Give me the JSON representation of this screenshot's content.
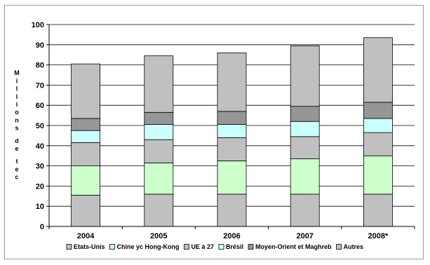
{
  "chart_data": {
    "type": "bar",
    "stacked": true,
    "title": "",
    "xlabel": "",
    "ylabel": "Millions de tec",
    "ylim": [
      0,
      100
    ],
    "yticks": [
      0,
      10,
      20,
      30,
      40,
      50,
      60,
      70,
      80,
      90,
      100
    ],
    "grid": true,
    "legend_position": "bottom",
    "categories": [
      "2004",
      "2005",
      "2006",
      "2007",
      "2008*"
    ],
    "series": [
      {
        "name": "Etats-Unis",
        "color": "#c0c0c0",
        "values": [
          15.5,
          16,
          16,
          16,
          16
        ]
      },
      {
        "name": "Chine yc Hong-Kong",
        "color": "#ccffcc",
        "values": [
          14.5,
          15.5,
          16.5,
          17.5,
          19
        ]
      },
      {
        "name": "UE à 27",
        "color": "#c0c0c0",
        "values": [
          11.5,
          11.5,
          11.5,
          11,
          11.5
        ]
      },
      {
        "name": "Brésil",
        "color": "#ccffff",
        "values": [
          6,
          7.5,
          6.5,
          7.5,
          7
        ]
      },
      {
        "name": "Moyen-Orient et Maghreb",
        "color": "#969696",
        "values": [
          6,
          6,
          6.5,
          7.5,
          8
        ]
      },
      {
        "name": "Autres",
        "color": "#c0c0c0",
        "values": [
          27,
          28,
          29,
          30,
          32
        ]
      }
    ]
  }
}
